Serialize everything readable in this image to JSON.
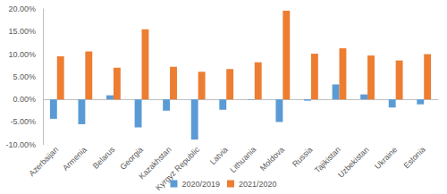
{
  "chart_data": {
    "type": "bar",
    "categories": [
      "Azerbaijan",
      "Armenia",
      "Belarus",
      "Georgia",
      "Kazakhstan",
      "Kyrgyz Republic",
      "Latvia",
      "Lithuania",
      "Moldova",
      "Russia",
      "Tajikistan",
      "Uzbekistan",
      "Ukraine",
      "Estonia"
    ],
    "series": [
      {
        "name": "2020/2019",
        "color": "#5b9bd5",
        "values": [
          -4.3,
          -5.5,
          0.9,
          -6.2,
          -2.5,
          -8.9,
          -2.3,
          -0.1,
          -5.0,
          -0.3,
          3.3,
          1.1,
          -1.8,
          -1.1
        ]
      },
      {
        "name": "2021/2020",
        "color": "#ed7d31",
        "values": [
          9.5,
          10.6,
          7.0,
          15.5,
          7.2,
          6.1,
          6.7,
          8.2,
          19.6,
          10.1,
          11.3,
          9.7,
          8.6,
          10.0
        ]
      }
    ],
    "ylim": [
      -10,
      20
    ],
    "yticks": [
      {
        "value": -10,
        "label": "-10.00%"
      },
      {
        "value": -5,
        "label": "-5.00%"
      },
      {
        "value": 0,
        "label": "0.00%"
      },
      {
        "value": 5,
        "label": "5.00%"
      },
      {
        "value": 10,
        "label": "10.00%"
      },
      {
        "value": 15,
        "label": "15.00%"
      },
      {
        "value": 20,
        "label": "20.00%"
      }
    ],
    "grid": false,
    "legend": "bottom"
  }
}
